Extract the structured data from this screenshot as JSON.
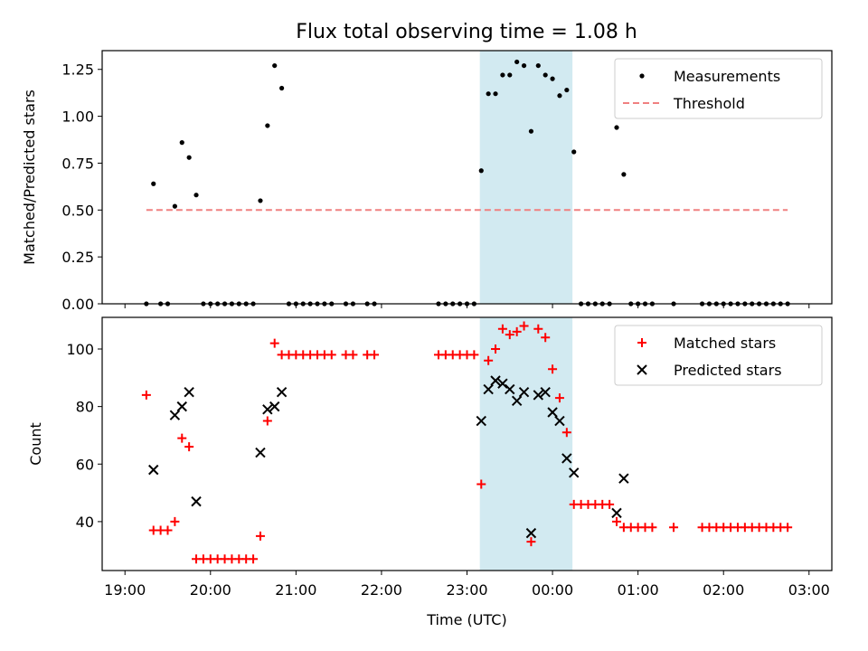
{
  "title": "Flux total observing time = 1.08 h",
  "shade_color": "#add8e6",
  "chart_data": [
    {
      "type": "scatter",
      "ylabel": "Matched/Predicted stars",
      "xlabel": "",
      "xlim": [
        "19:00",
        "03:00"
      ],
      "ylim": [
        0,
        1.35
      ],
      "yticks": [
        "0.00",
        "0.25",
        "0.50",
        "0.75",
        "1.00",
        "1.25"
      ],
      "shaded_region": [
        "23:09",
        "00:14"
      ],
      "legend": {
        "placement": "top-right",
        "entries": [
          "Measurements",
          "Threshold"
        ]
      },
      "series": [
        {
          "name": "Measurements",
          "marker": "dot",
          "color": "#000000",
          "points": [
            [
              "19:15",
              0
            ],
            [
              "19:20",
              0.64
            ],
            [
              "19:25",
              0
            ],
            [
              "19:30",
              0
            ],
            [
              "19:35",
              0.52
            ],
            [
              "19:40",
              0.86
            ],
            [
              "19:45",
              0.78
            ],
            [
              "19:50",
              0.58
            ],
            [
              "19:55",
              0
            ],
            [
              "20:00",
              0
            ],
            [
              "20:05",
              0
            ],
            [
              "20:10",
              0
            ],
            [
              "20:15",
              0
            ],
            [
              "20:20",
              0
            ],
            [
              "20:25",
              0
            ],
            [
              "20:30",
              0
            ],
            [
              "20:35",
              0.55
            ],
            [
              "20:40",
              0.95
            ],
            [
              "20:45",
              1.27
            ],
            [
              "20:50",
              1.15
            ],
            [
              "20:55",
              0
            ],
            [
              "21:00",
              0
            ],
            [
              "21:05",
              0
            ],
            [
              "21:10",
              0
            ],
            [
              "21:15",
              0
            ],
            [
              "21:20",
              0
            ],
            [
              "21:25",
              0
            ],
            [
              "21:35",
              0
            ],
            [
              "21:40",
              0
            ],
            [
              "21:50",
              0
            ],
            [
              "21:55",
              0
            ],
            [
              "22:40",
              0
            ],
            [
              "22:45",
              0
            ],
            [
              "22:50",
              0
            ],
            [
              "22:55",
              0
            ],
            [
              "23:00",
              0
            ],
            [
              "23:05",
              0
            ],
            [
              "23:10",
              0.71
            ],
            [
              "23:15",
              1.12
            ],
            [
              "23:20",
              1.12
            ],
            [
              "23:25",
              1.22
            ],
            [
              "23:30",
              1.22
            ],
            [
              "23:35",
              1.29
            ],
            [
              "23:40",
              1.27
            ],
            [
              "23:45",
              0.92
            ],
            [
              "23:50",
              1.27
            ],
            [
              "23:55",
              1.22
            ],
            [
              "00:00",
              1.2
            ],
            [
              "00:05",
              1.11
            ],
            [
              "00:10",
              1.14
            ],
            [
              "00:15",
              0.81
            ],
            [
              "00:20",
              0
            ],
            [
              "00:25",
              0
            ],
            [
              "00:30",
              0
            ],
            [
              "00:35",
              0
            ],
            [
              "00:40",
              0
            ],
            [
              "00:45",
              0.94
            ],
            [
              "00:50",
              0.69
            ],
            [
              "00:55",
              0
            ],
            [
              "01:00",
              0
            ],
            [
              "01:05",
              0
            ],
            [
              "01:10",
              0
            ],
            [
              "01:25",
              0
            ],
            [
              "01:45",
              0
            ],
            [
              "01:50",
              0
            ],
            [
              "01:55",
              0
            ],
            [
              "02:00",
              0
            ],
            [
              "02:05",
              0
            ],
            [
              "02:10",
              0
            ],
            [
              "02:15",
              0
            ],
            [
              "02:20",
              0
            ],
            [
              "02:25",
              0
            ],
            [
              "02:30",
              0
            ],
            [
              "02:35",
              0
            ],
            [
              "02:40",
              0
            ],
            [
              "02:45",
              0
            ]
          ]
        },
        {
          "name": "Threshold",
          "marker": "dashed-line",
          "color": "#f08080",
          "points": [
            [
              "19:15",
              0.5
            ],
            [
              "02:45",
              0.5
            ]
          ]
        }
      ]
    },
    {
      "type": "scatter",
      "ylabel": "Count",
      "xlabel": "Time (UTC)",
      "xlim": [
        "19:00",
        "03:00"
      ],
      "ylim": [
        23,
        111
      ],
      "yticks": [
        "40",
        "60",
        "80",
        "100"
      ],
      "xticks": [
        "19:00",
        "20:00",
        "21:00",
        "22:00",
        "23:00",
        "00:00",
        "01:00",
        "02:00",
        "03:00"
      ],
      "shaded_region": [
        "23:09",
        "00:14"
      ],
      "legend": {
        "placement": "top-right",
        "entries": [
          "Matched stars",
          "Predicted stars"
        ]
      },
      "series": [
        {
          "name": "Matched stars",
          "marker": "plus",
          "color": "#ff0000",
          "points": [
            [
              "19:15",
              84
            ],
            [
              "19:20",
              37
            ],
            [
              "19:25",
              37
            ],
            [
              "19:30",
              37
            ],
            [
              "19:35",
              40
            ],
            [
              "19:40",
              69
            ],
            [
              "19:45",
              66
            ],
            [
              "19:50",
              27
            ],
            [
              "19:55",
              27
            ],
            [
              "20:00",
              27
            ],
            [
              "20:05",
              27
            ],
            [
              "20:10",
              27
            ],
            [
              "20:15",
              27
            ],
            [
              "20:20",
              27
            ],
            [
              "20:25",
              27
            ],
            [
              "20:30",
              27
            ],
            [
              "20:35",
              35
            ],
            [
              "20:40",
              75
            ],
            [
              "20:45",
              102
            ],
            [
              "20:50",
              98
            ],
            [
              "20:55",
              98
            ],
            [
              "21:00",
              98
            ],
            [
              "21:05",
              98
            ],
            [
              "21:10",
              98
            ],
            [
              "21:15",
              98
            ],
            [
              "21:20",
              98
            ],
            [
              "21:25",
              98
            ],
            [
              "21:35",
              98
            ],
            [
              "21:40",
              98
            ],
            [
              "21:50",
              98
            ],
            [
              "21:55",
              98
            ],
            [
              "22:40",
              98
            ],
            [
              "22:45",
              98
            ],
            [
              "22:50",
              98
            ],
            [
              "22:55",
              98
            ],
            [
              "23:00",
              98
            ],
            [
              "23:05",
              98
            ],
            [
              "23:10",
              53
            ],
            [
              "23:15",
              96
            ],
            [
              "23:20",
              100
            ],
            [
              "23:25",
              107
            ],
            [
              "23:30",
              105
            ],
            [
              "23:35",
              106
            ],
            [
              "23:40",
              108
            ],
            [
              "23:45",
              33
            ],
            [
              "23:50",
              107
            ],
            [
              "23:55",
              104
            ],
            [
              "00:00",
              93
            ],
            [
              "00:05",
              83
            ],
            [
              "00:10",
              71
            ],
            [
              "00:15",
              46
            ],
            [
              "00:20",
              46
            ],
            [
              "00:25",
              46
            ],
            [
              "00:30",
              46
            ],
            [
              "00:35",
              46
            ],
            [
              "00:40",
              46
            ],
            [
              "00:45",
              40
            ],
            [
              "00:50",
              38
            ],
            [
              "00:55",
              38
            ],
            [
              "01:00",
              38
            ],
            [
              "01:05",
              38
            ],
            [
              "01:10",
              38
            ],
            [
              "01:25",
              38
            ],
            [
              "01:45",
              38
            ],
            [
              "01:50",
              38
            ],
            [
              "01:55",
              38
            ],
            [
              "02:00",
              38
            ],
            [
              "02:05",
              38
            ],
            [
              "02:10",
              38
            ],
            [
              "02:15",
              38
            ],
            [
              "02:20",
              38
            ],
            [
              "02:25",
              38
            ],
            [
              "02:30",
              38
            ],
            [
              "02:35",
              38
            ],
            [
              "02:40",
              38
            ],
            [
              "02:45",
              38
            ]
          ]
        },
        {
          "name": "Predicted stars",
          "marker": "x",
          "color": "#000000",
          "points": [
            [
              "19:20",
              58
            ],
            [
              "19:35",
              77
            ],
            [
              "19:40",
              80
            ],
            [
              "19:45",
              85
            ],
            [
              "19:50",
              47
            ],
            [
              "20:35",
              64
            ],
            [
              "20:40",
              79
            ],
            [
              "20:45",
              80
            ],
            [
              "20:50",
              85
            ],
            [
              "23:10",
              75
            ],
            [
              "23:15",
              86
            ],
            [
              "23:20",
              89
            ],
            [
              "23:25",
              88
            ],
            [
              "23:30",
              86
            ],
            [
              "23:35",
              82
            ],
            [
              "23:40",
              85
            ],
            [
              "23:45",
              36
            ],
            [
              "23:50",
              84
            ],
            [
              "23:55",
              85
            ],
            [
              "00:00",
              78
            ],
            [
              "00:05",
              75
            ],
            [
              "00:10",
              62
            ],
            [
              "00:15",
              57
            ],
            [
              "00:45",
              43
            ],
            [
              "00:50",
              55
            ]
          ]
        }
      ]
    }
  ]
}
